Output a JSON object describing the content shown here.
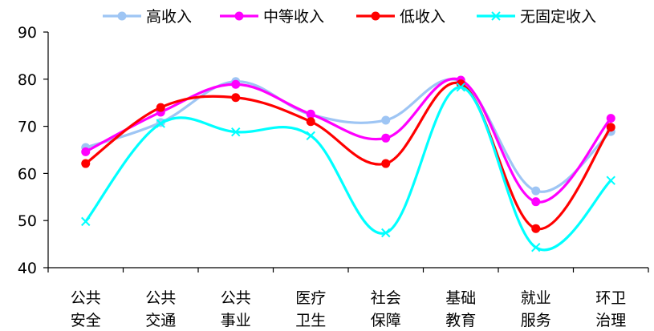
{
  "chart_data": {
    "type": "line",
    "smooth": true,
    "categories": [
      [
        "公共",
        "安全"
      ],
      [
        "公共",
        "交通"
      ],
      [
        "公共",
        "事业"
      ],
      [
        "医疗",
        "卫生"
      ],
      [
        "社会",
        "保障"
      ],
      [
        "基础",
        "教育"
      ],
      [
        "就业",
        "服务"
      ],
      [
        "环卫",
        "治理"
      ]
    ],
    "ylim": [
      40,
      90
    ],
    "yticks": [
      40,
      50,
      60,
      70,
      80,
      90
    ],
    "legend_position": "top",
    "grid": false,
    "series": [
      {
        "name": "高收入",
        "color": "#9EC5F4",
        "marker": "circle",
        "values": [
          65.5,
          70.8,
          79.5,
          72.5,
          71.3,
          79.5,
          56.3,
          68.9
        ]
      },
      {
        "name": "中等收入",
        "color": "#FF00FF",
        "marker": "circle",
        "values": [
          64.6,
          73.0,
          78.9,
          72.6,
          67.5,
          79.8,
          54.0,
          71.7
        ]
      },
      {
        "name": "低收入",
        "color": "#FF0000",
        "marker": "circle",
        "values": [
          62.1,
          74.0,
          76.1,
          71.0,
          62.1,
          79.0,
          48.3,
          69.8
        ]
      },
      {
        "name": "无固定收入",
        "color": "#00FFFF",
        "marker": "x",
        "values": [
          49.8,
          70.6,
          68.8,
          68.0,
          47.4,
          78.3,
          44.3,
          58.5
        ]
      }
    ]
  }
}
